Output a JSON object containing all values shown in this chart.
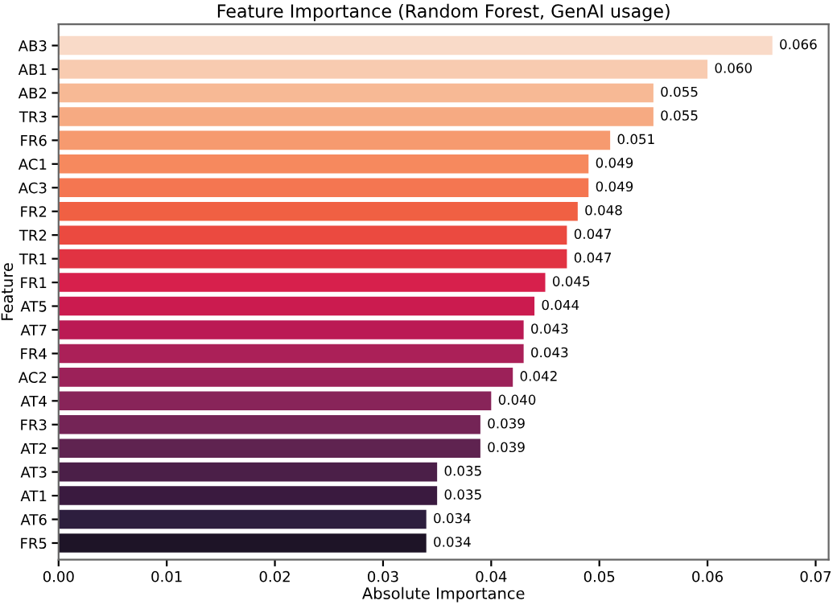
{
  "chart_data": {
    "type": "bar",
    "orientation": "horizontal",
    "title": "Feature Importance (Random Forest, GenAI usage)",
    "xlabel": "Absolute Importance",
    "ylabel": "Feature",
    "categories": [
      "AB3",
      "AB1",
      "AB2",
      "TR3",
      "FR6",
      "AC1",
      "AC3",
      "FR2",
      "TR2",
      "TR1",
      "FR1",
      "AT5",
      "AT7",
      "FR4",
      "AC2",
      "AT4",
      "FR3",
      "AT2",
      "AT3",
      "AT1",
      "AT6",
      "FR5"
    ],
    "values": [
      0.066,
      0.06,
      0.055,
      0.055,
      0.051,
      0.049,
      0.049,
      0.048,
      0.047,
      0.047,
      0.045,
      0.044,
      0.043,
      0.043,
      0.042,
      0.04,
      0.039,
      0.039,
      0.035,
      0.035,
      0.034,
      0.034
    ],
    "value_labels": [
      "0.066",
      "0.060",
      "0.055",
      "0.055",
      "0.051",
      "0.049",
      "0.049",
      "0.048",
      "0.047",
      "0.047",
      "0.045",
      "0.044",
      "0.043",
      "0.043",
      "0.042",
      "0.040",
      "0.039",
      "0.039",
      "0.035",
      "0.035",
      "0.034",
      "0.034"
    ],
    "colors": [
      "#f9dac8",
      "#f8cbb0",
      "#f7b995",
      "#f6aa82",
      "#f69a6f",
      "#f6895e",
      "#f47651",
      "#f06043",
      "#eb4a40",
      "#e13342",
      "#d7204c",
      "#cb1b4f",
      "#bb1a54",
      "#ab2058",
      "#9c2159",
      "#882459",
      "#742456",
      "#5f2350",
      "#4b1f48",
      "#3a1a3f",
      "#2d1e3e",
      "#1e1427"
    ],
    "xlim": [
      0,
      0.0712
    ],
    "xticks": [
      {
        "value": 0,
        "label": "0.00"
      },
      {
        "value": 0.01,
        "label": "0.01"
      },
      {
        "value": 0.02,
        "label": "0.02"
      },
      {
        "value": 0.03,
        "label": "0.03"
      },
      {
        "value": 0.04,
        "label": "0.04"
      },
      {
        "value": 0.05,
        "label": "0.05"
      },
      {
        "value": 0.06,
        "label": "0.06"
      },
      {
        "value": 0.07,
        "label": "0.07"
      }
    ],
    "grid": false
  }
}
